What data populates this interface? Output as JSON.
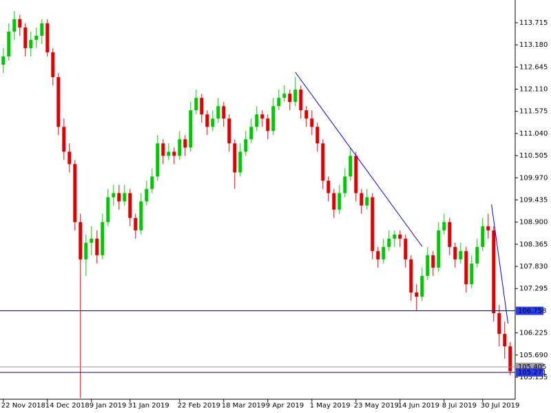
{
  "chart_data": {
    "type": "candlestick",
    "ylim": [
      104.623,
      114.263
    ],
    "xlim": [
      -0.6,
      92.9
    ],
    "up_color": "#00c800",
    "down_color": "#e00000",
    "yticks": [
      {
        "value": 113.715,
        "label": "113.715"
      },
      {
        "value": 113.18,
        "label": "113.180"
      },
      {
        "value": 112.645,
        "label": "112.645"
      },
      {
        "value": 112.11,
        "label": "112.110"
      },
      {
        "value": 111.575,
        "label": "111.575"
      },
      {
        "value": 111.04,
        "label": "111.040"
      },
      {
        "value": 110.505,
        "label": "110.505"
      },
      {
        "value": 109.97,
        "label": "109.970"
      },
      {
        "value": 109.435,
        "label": "109.435"
      },
      {
        "value": 108.9,
        "label": "108.900"
      },
      {
        "value": 108.365,
        "label": "108.365"
      },
      {
        "value": 107.83,
        "label": "107.830"
      },
      {
        "value": 107.295,
        "label": "107.295"
      },
      {
        "value": 106.225,
        "label": "106.225"
      },
      {
        "value": 105.69,
        "label": "105.690"
      },
      {
        "value": 105.155,
        "label": "105.155"
      }
    ],
    "xticks": [
      {
        "value": 0,
        "label": "22 Nov 2018"
      },
      {
        "value": 8,
        "label": "14 Dec 2018"
      },
      {
        "value": 16,
        "label": "9 Jan 2019"
      },
      {
        "value": 23,
        "label": "31 Jan 2019"
      },
      {
        "value": 32,
        "label": "22 Feb 2019"
      },
      {
        "value": 40,
        "label": "18 Mar 2019"
      },
      {
        "value": 48,
        "label": "9 Apr 2019"
      },
      {
        "value": 56,
        "label": "1 May 2019"
      },
      {
        "value": 64,
        "label": "23 May 2019"
      },
      {
        "value": 72,
        "label": "14 Jun 2019"
      },
      {
        "value": 80,
        "label": "8 Jul 2019"
      },
      {
        "value": 87,
        "label": "30 Jul 2019"
      }
    ],
    "hlines": [
      {
        "value": 106.758,
        "label": "106.758",
        "color": "#000080",
        "label_bg": "#2a3cf0"
      },
      {
        "value": 105.405,
        "label": "105.405",
        "color": "#909090",
        "label_bg": "#a0a0a0"
      },
      {
        "value": 105.271,
        "label": "105.271",
        "color": "#000080",
        "label_bg": "#2a3cf0"
      }
    ],
    "trendlines": [
      {
        "x": [
          53,
          76
        ],
        "y": [
          112.518,
          108.313
        ],
        "color": "#0000e0"
      },
      {
        "x": [
          88.6,
          91.6
        ],
        "y": [
          109.327,
          106.451
        ],
        "color": "#0000e0"
      }
    ],
    "ohlc": [
      [
        112.7,
        113.1,
        112.5,
        112.9
      ],
      [
        112.9,
        113.7,
        112.8,
        113.5
      ],
      [
        113.5,
        114.0,
        113.3,
        113.8
      ],
      [
        113.8,
        113.9,
        113.4,
        113.6
      ],
      [
        113.6,
        113.7,
        112.9,
        113.1
      ],
      [
        113.1,
        113.5,
        112.9,
        113.3
      ],
      [
        113.3,
        113.6,
        113.1,
        113.4
      ],
      [
        113.4,
        113.8,
        113.2,
        113.7
      ],
      [
        113.7,
        113.8,
        112.9,
        113.0
      ],
      [
        113.0,
        113.1,
        112.2,
        112.4
      ],
      [
        112.4,
        112.5,
        111.0,
        111.2
      ],
      [
        111.2,
        111.4,
        110.4,
        110.6
      ],
      [
        110.6,
        110.8,
        110.1,
        110.3
      ],
      [
        110.3,
        110.4,
        108.7,
        108.9
      ],
      [
        108.9,
        109.1,
        104.65,
        108.0
      ],
      [
        108.0,
        108.6,
        107.6,
        108.4
      ],
      [
        108.4,
        108.8,
        108.1,
        108.5
      ],
      [
        108.5,
        108.7,
        107.9,
        108.1
      ],
      [
        108.1,
        109.1,
        108.0,
        108.9
      ],
      [
        108.9,
        109.7,
        108.8,
        109.5
      ],
      [
        109.5,
        109.8,
        109.3,
        109.6
      ],
      [
        109.6,
        109.8,
        109.2,
        109.4
      ],
      [
        109.4,
        109.8,
        109.3,
        109.6
      ],
      [
        109.6,
        109.7,
        108.8,
        109.0
      ],
      [
        109.0,
        109.1,
        108.5,
        108.7
      ],
      [
        108.7,
        109.6,
        108.6,
        109.4
      ],
      [
        109.4,
        109.9,
        109.3,
        109.7
      ],
      [
        109.7,
        110.2,
        109.6,
        110.0
      ],
      [
        110.0,
        111.0,
        109.9,
        110.8
      ],
      [
        110.8,
        110.9,
        110.3,
        110.5
      ],
      [
        110.5,
        110.8,
        110.4,
        110.6
      ],
      [
        110.6,
        110.7,
        110.3,
        110.5
      ],
      [
        110.5,
        111.1,
        110.4,
        110.9
      ],
      [
        110.9,
        111.0,
        110.5,
        110.7
      ],
      [
        110.7,
        111.8,
        110.6,
        111.6
      ],
      [
        111.6,
        112.1,
        111.5,
        111.9
      ],
      [
        111.9,
        112.0,
        111.3,
        111.5
      ],
      [
        111.5,
        111.6,
        111.0,
        111.2
      ],
      [
        111.2,
        111.6,
        111.1,
        111.4
      ],
      [
        111.4,
        111.9,
        111.3,
        111.7
      ],
      [
        111.7,
        111.8,
        111.2,
        111.4
      ],
      [
        111.4,
        111.5,
        110.6,
        110.8
      ],
      [
        110.8,
        110.9,
        109.7,
        110.1
      ],
      [
        110.1,
        110.8,
        110.0,
        110.6
      ],
      [
        110.6,
        111.1,
        110.5,
        110.9
      ],
      [
        110.9,
        111.4,
        110.8,
        111.2
      ],
      [
        111.2,
        111.7,
        111.1,
        111.5
      ],
      [
        111.5,
        111.6,
        111.2,
        111.4
      ],
      [
        111.4,
        111.5,
        110.9,
        111.1
      ],
      [
        111.1,
        111.9,
        111.0,
        111.7
      ],
      [
        111.7,
        112.1,
        111.6,
        111.9
      ],
      [
        111.9,
        112.2,
        111.8,
        112.0
      ],
      [
        112.0,
        112.1,
        111.6,
        111.8
      ],
      [
        111.8,
        112.4,
        111.7,
        112.1
      ],
      [
        112.1,
        112.2,
        111.4,
        111.6
      ],
      [
        111.6,
        111.7,
        111.2,
        111.4
      ],
      [
        111.4,
        111.6,
        111.0,
        111.2
      ],
      [
        111.2,
        111.3,
        110.6,
        110.8
      ],
      [
        110.8,
        110.9,
        109.7,
        109.9
      ],
      [
        109.9,
        110.0,
        109.4,
        109.6
      ],
      [
        109.6,
        109.7,
        109.0,
        109.2
      ],
      [
        109.2,
        109.8,
        109.1,
        109.6
      ],
      [
        109.6,
        110.2,
        109.5,
        110.0
      ],
      [
        110.0,
        110.7,
        109.9,
        110.5
      ],
      [
        110.5,
        110.6,
        109.4,
        109.6
      ],
      [
        109.6,
        109.7,
        109.1,
        109.3
      ],
      [
        109.3,
        109.7,
        109.2,
        109.5
      ],
      [
        109.5,
        109.6,
        108.0,
        108.2
      ],
      [
        108.2,
        108.3,
        107.8,
        108.0
      ],
      [
        108.0,
        108.5,
        107.9,
        108.3
      ],
      [
        108.3,
        108.7,
        108.2,
        108.5
      ],
      [
        108.5,
        108.7,
        108.3,
        108.6
      ],
      [
        108.6,
        108.7,
        108.3,
        108.5
      ],
      [
        108.5,
        108.6,
        107.8,
        108.0
      ],
      [
        108.0,
        108.1,
        107.0,
        107.2
      ],
      [
        107.2,
        107.4,
        106.76,
        107.1
      ],
      [
        107.1,
        107.8,
        107.0,
        107.6
      ],
      [
        107.6,
        108.3,
        107.5,
        108.1
      ],
      [
        108.1,
        108.2,
        107.6,
        107.8
      ],
      [
        107.8,
        108.9,
        107.7,
        108.7
      ],
      [
        108.7,
        109.1,
        108.6,
        108.9
      ],
      [
        108.9,
        109.0,
        108.1,
        108.3
      ],
      [
        108.3,
        108.4,
        107.8,
        108.0
      ],
      [
        108.0,
        108.4,
        107.9,
        108.2
      ],
      [
        108.2,
        108.3,
        107.2,
        107.4
      ],
      [
        107.4,
        108.1,
        107.3,
        107.9
      ],
      [
        107.9,
        108.5,
        107.8,
        108.3
      ],
      [
        108.3,
        109.0,
        108.2,
        108.8
      ],
      [
        108.8,
        109.1,
        108.5,
        108.7
      ],
      [
        108.7,
        108.8,
        106.5,
        106.7
      ],
      [
        106.7,
        106.9,
        105.9,
        106.2
      ],
      [
        106.2,
        106.5,
        105.6,
        105.9
      ],
      [
        105.9,
        106.0,
        105.2,
        105.3
      ]
    ]
  }
}
